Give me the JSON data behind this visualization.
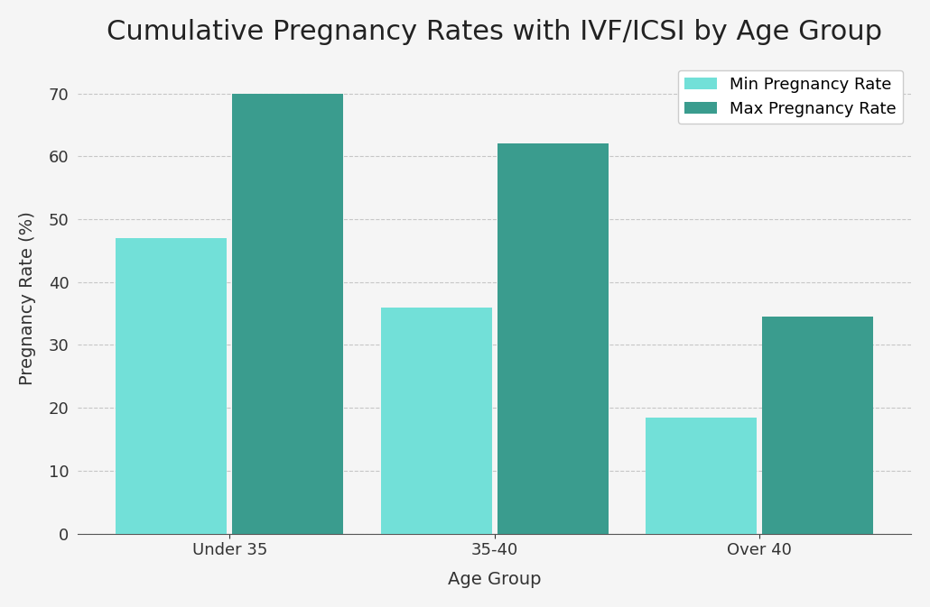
{
  "title": "Cumulative Pregnancy Rates with IVF/ICSI by Age Group",
  "xlabel": "Age Group",
  "ylabel": "Pregnancy Rate (%)",
  "categories": [
    "Under 35",
    "35-40",
    "Over 40"
  ],
  "min_values": [
    47,
    36,
    18.5
  ],
  "max_values": [
    70,
    62,
    34.5
  ],
  "min_color": "#72E0D8",
  "max_color": "#3A9C8E",
  "min_label": "Min Pregnancy Rate",
  "max_label": "Max Pregnancy Rate",
  "ylim": [
    0,
    75
  ],
  "bar_width": 0.42,
  "bar_gap": 0.02,
  "title_fontsize": 22,
  "label_fontsize": 14,
  "tick_fontsize": 13,
  "legend_fontsize": 13,
  "background_color": "#f5f5f5",
  "axes_background": "#f5f5f5",
  "grid_color": "#bbbbbb",
  "grid_style": "--",
  "grid_alpha": 0.8
}
